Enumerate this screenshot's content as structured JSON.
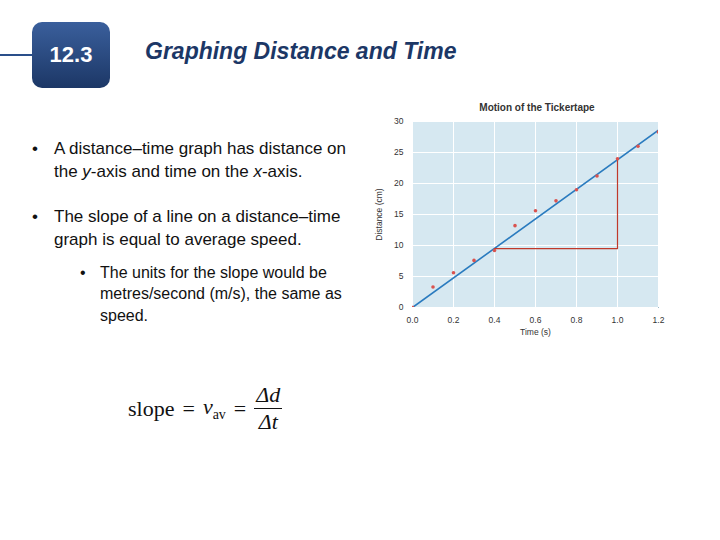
{
  "slide": {
    "section": "12.3",
    "title": "Graphing Distance and Time",
    "bullets": [
      {
        "segments": [
          {
            "text": "A distance–time graph has distance on the "
          },
          {
            "text": "y",
            "italic": true
          },
          {
            "text": "-axis and time on the "
          },
          {
            "text": "x",
            "italic": true
          },
          {
            "text": "-axis."
          }
        ]
      },
      {
        "segments": [
          {
            "text": "The slope of a line on a distance–time graph is equal to average speed."
          }
        ],
        "sub": [
          {
            "segments": [
              {
                "text": "The units for the slope would be metres/second (m/s), the same as speed."
              }
            ]
          }
        ]
      }
    ],
    "formula": {
      "lhs": "slope",
      "equals": "=",
      "symbol": "v",
      "subscript": "av",
      "numerator": "Δd",
      "denominator": "Δt"
    }
  },
  "chart_data": {
    "type": "scatter",
    "title": "Motion of the Tickertape",
    "x_label": "Time (s)",
    "y_label": "Distance (cm)",
    "x": [
      0.0,
      0.1,
      0.2,
      0.3,
      0.4,
      0.5,
      0.6,
      0.7,
      0.8,
      0.9,
      1.0,
      1.1,
      1.2
    ],
    "values": [
      0,
      3.3,
      5.6,
      7.6,
      9.2,
      13.2,
      15.6,
      17.2,
      19.0,
      21.2,
      24.0,
      26.0,
      28.3
    ],
    "color": "#d9534f",
    "marker": "circle",
    "trend_line": {
      "x": [
        0.0,
        1.2
      ],
      "y": [
        0.0,
        28.6
      ],
      "color": "#2a7bbf"
    },
    "slope_triangle": {
      "x": [
        0.4,
        1.0,
        1.0
      ],
      "y": [
        9.5,
        9.5,
        24.0
      ],
      "color": "#c0392b"
    },
    "xlim": [
      0.0,
      1.2
    ],
    "xticks": [
      {
        "value": 0,
        "label": "0.0"
      },
      0.2,
      0.4,
      0.6,
      0.8,
      {
        "value": 1,
        "label": "1.0"
      },
      1.2
    ],
    "ylim": [
      0,
      30
    ],
    "yticks": [
      0,
      5,
      10,
      15,
      20,
      25,
      30
    ],
    "grid": true
  }
}
